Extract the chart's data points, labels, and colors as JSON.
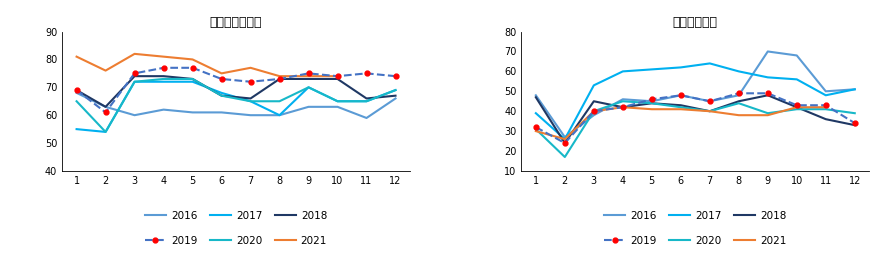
{
  "chart1_title": "铝板带箔开工率",
  "chart2_title": "铝线缆开工率",
  "months": [
    1,
    2,
    3,
    4,
    5,
    6,
    7,
    8,
    9,
    10,
    11,
    12
  ],
  "chart1": {
    "2016": [
      68,
      63,
      60,
      62,
      61,
      61,
      60,
      60,
      63,
      63,
      59,
      66
    ],
    "2017": [
      55,
      54,
      72,
      72,
      72,
      68,
      65,
      60,
      70,
      65,
      65,
      69
    ],
    "2018": [
      69,
      63,
      74,
      74,
      73,
      67,
      66,
      73,
      73,
      73,
      66,
      67
    ],
    "2019": [
      69,
      61,
      75,
      77,
      77,
      73,
      72,
      73,
      75,
      74,
      75,
      74
    ],
    "2020": [
      65,
      54,
      72,
      73,
      73,
      67,
      65,
      65,
      70,
      65,
      65,
      69
    ],
    "2021": [
      81,
      76,
      82,
      81,
      80,
      75,
      77,
      74,
      74,
      74,
      null,
      null
    ]
  },
  "chart2": {
    "2016": [
      48,
      27,
      38,
      46,
      45,
      48,
      45,
      48,
      70,
      68,
      50,
      51
    ],
    "2017": [
      39,
      26,
      53,
      60,
      61,
      62,
      64,
      60,
      57,
      56,
      48,
      51
    ],
    "2018": [
      47,
      24,
      45,
      42,
      44,
      43,
      40,
      45,
      48,
      42,
      36,
      33
    ],
    "2019": [
      32,
      24,
      40,
      42,
      46,
      48,
      45,
      49,
      49,
      43,
      43,
      34
    ],
    "2020": [
      31,
      17,
      40,
      45,
      44,
      42,
      40,
      44,
      39,
      41,
      41,
      39
    ],
    "2021": [
      30,
      26,
      40,
      42,
      41,
      41,
      40,
      38,
      38,
      42,
      42,
      null
    ]
  },
  "colors": {
    "2016": "#5B9BD5",
    "2017": "#00B0F0",
    "2018": "#1F3864",
    "2019": "#4472C4",
    "2020": "#17B8C8",
    "2021": "#ED7D31"
  },
  "chart1_ylim": [
    40,
    90
  ],
  "chart2_ylim": [
    10,
    80
  ],
  "chart1_yticks": [
    40,
    50,
    60,
    70,
    80,
    90
  ],
  "chart2_yticks": [
    10,
    20,
    30,
    40,
    50,
    60,
    70,
    80
  ]
}
